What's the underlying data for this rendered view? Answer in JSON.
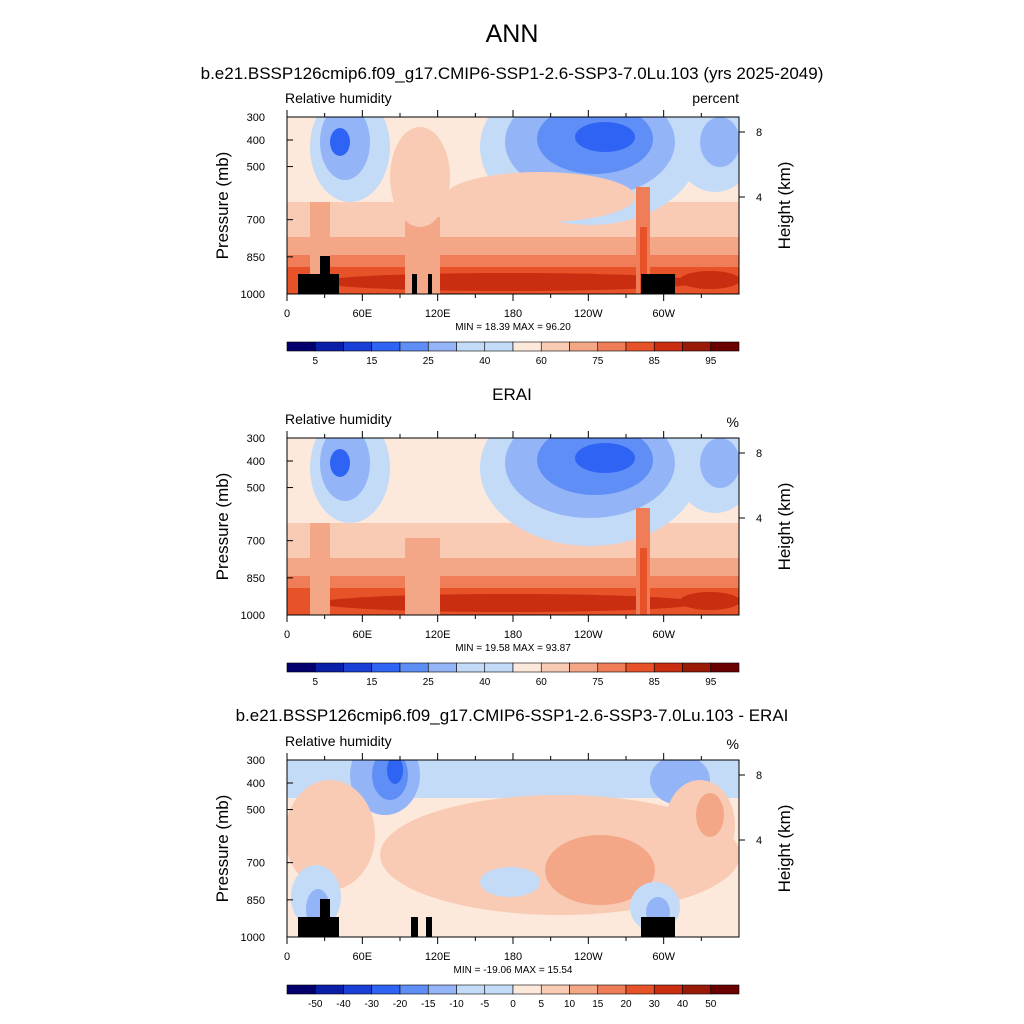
{
  "main_title": "ANN",
  "colors": {
    "rh_scale": [
      "#03006d",
      "#0a1fa8",
      "#1a3fd6",
      "#2f63f4",
      "#5f8ef6",
      "#93b5f7",
      "#c4dbf8",
      "#fde9dc",
      "#f9cbb4",
      "#f4a787",
      "#ee7d58",
      "#e75229",
      "#c92e11",
      "#9a1a08",
      "#6a0000"
    ],
    "terrain": "#000000"
  },
  "chart_data": [
    {
      "type": "heatmap",
      "title": "b.e21.BSSP126cmip6.f09_g17.CMIP6-SSP1-2.6-SSP3-7.0Lu.103 (yrs 2025-2049)",
      "variable_label": "Relative humidity",
      "units_label": "percent",
      "ylabel": "Pressure (mb)",
      "y2label": "Height (km)",
      "y_ticks": [
        "300",
        "400",
        "500",
        "700",
        "850",
        "1000"
      ],
      "y2_ticks": [
        "8",
        "4"
      ],
      "x_ticks": [
        "0",
        "60E",
        "120E",
        "180",
        "120W",
        "60W"
      ],
      "minmax_label": "MIN = 18.39  MAX = 96.20",
      "colorbar_labels": [
        "5",
        "15",
        "25",
        "40",
        "60",
        "75",
        "85",
        "95"
      ]
    },
    {
      "type": "heatmap",
      "title": "ERAI",
      "variable_label": "Relative humidity",
      "units_label": "%",
      "ylabel": "Pressure (mb)",
      "y2label": "Height (km)",
      "y_ticks": [
        "300",
        "400",
        "500",
        "700",
        "850",
        "1000"
      ],
      "y2_ticks": [
        "8",
        "4"
      ],
      "x_ticks": [
        "0",
        "60E",
        "120E",
        "180",
        "120W",
        "60W"
      ],
      "minmax_label": "MIN = 19.58  MAX = 93.87",
      "colorbar_labels": [
        "5",
        "15",
        "25",
        "40",
        "60",
        "75",
        "85",
        "95"
      ]
    },
    {
      "type": "heatmap",
      "title": "b.e21.BSSP126cmip6.f09_g17.CMIP6-SSP1-2.6-SSP3-7.0Lu.103 - ERAI",
      "variable_label": "Relative humidity",
      "units_label": "%",
      "ylabel": "Pressure (mb)",
      "y2label": "Height (km)",
      "y_ticks": [
        "300",
        "400",
        "500",
        "700",
        "850",
        "1000"
      ],
      "y2_ticks": [
        "8",
        "4"
      ],
      "x_ticks": [
        "0",
        "60E",
        "120E",
        "180",
        "120W",
        "60W"
      ],
      "minmax_label": "MIN = -19.06  MAX = 15.54",
      "colorbar_labels": [
        "-50",
        "-40",
        "-30",
        "-20",
        "-15",
        "-10",
        "-5",
        "0",
        "5",
        "10",
        "15",
        "20",
        "30",
        "40",
        "50"
      ]
    }
  ]
}
